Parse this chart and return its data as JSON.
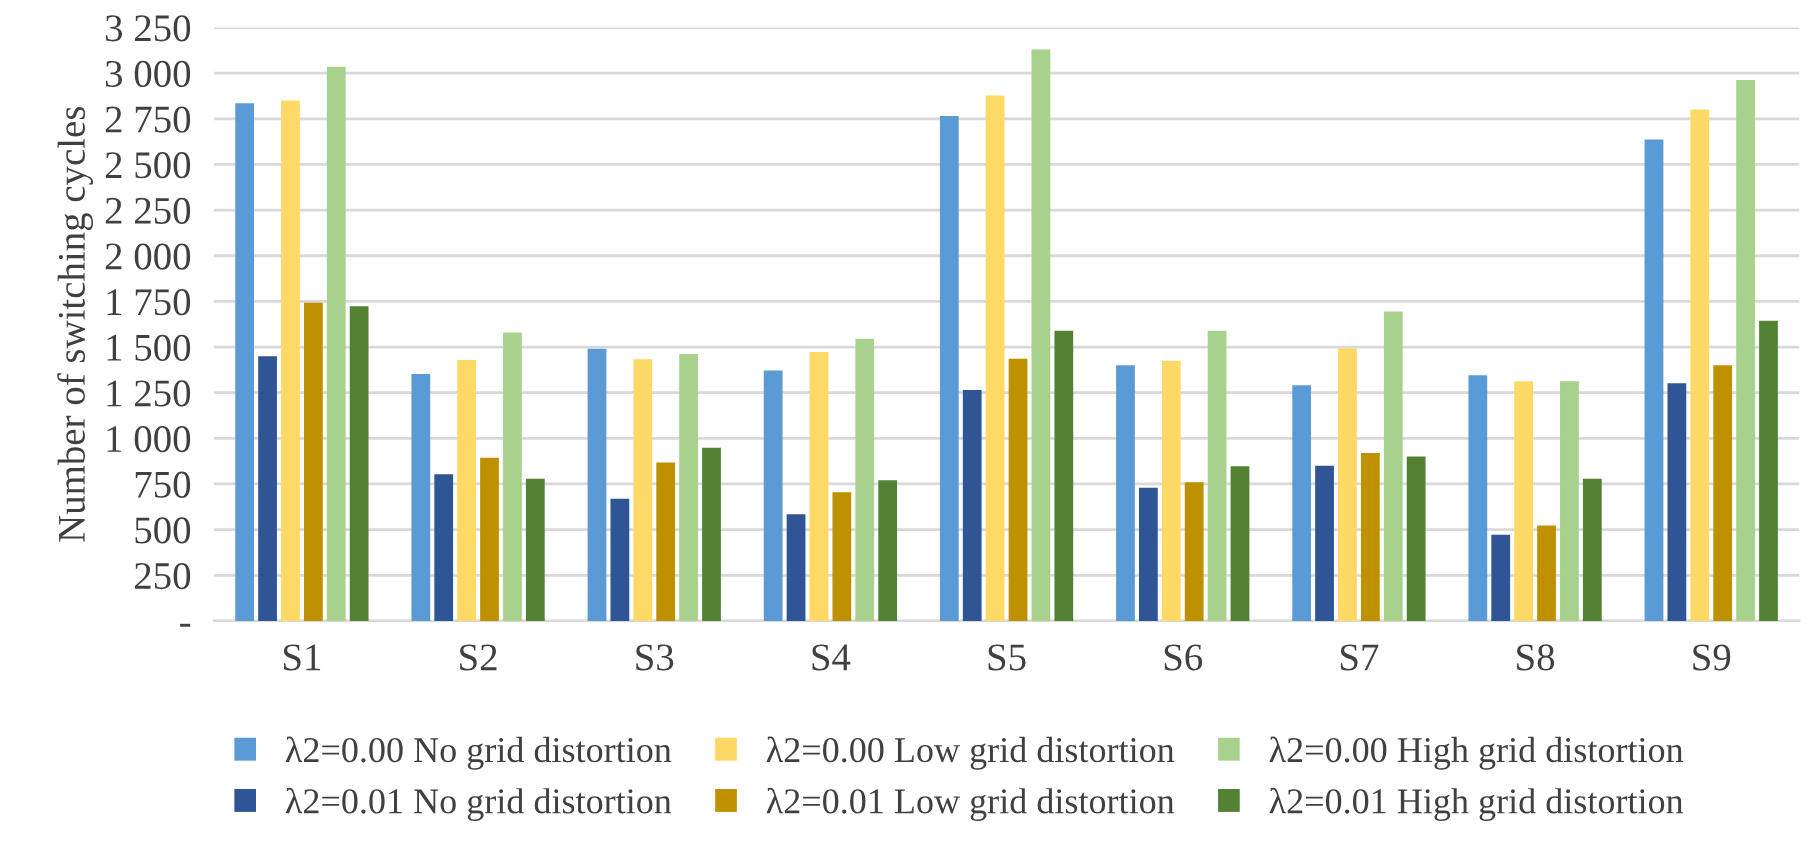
{
  "chart_data": {
    "type": "bar",
    "ylabel": "Number of switching cycles",
    "categories": [
      "S1",
      "S2",
      "S3",
      "S4",
      "S5",
      "S6",
      "S7",
      "S8",
      "S9"
    ],
    "series": [
      {
        "name": "λ2=0.00 No grid distortion",
        "color": "#5b9bd5",
        "values": [
          2835,
          1352,
          1491,
          1371,
          2766,
          1400,
          1291,
          1345,
          2637
        ]
      },
      {
        "name": "λ2=0.01 No grid distortion",
        "color": "#2f5597",
        "values": [
          1450,
          803,
          669,
          584,
          1265,
          730,
          850,
          472,
          1302
        ]
      },
      {
        "name": "λ2=0.00 Low grid distortion",
        "color": "#ffd966",
        "values": [
          2850,
          1429,
          1433,
          1473,
          2878,
          1425,
          1494,
          1313,
          2801
        ]
      },
      {
        "name": "λ2=0.01 Low grid distortion",
        "color": "#bf9000",
        "values": [
          1742,
          894,
          868,
          705,
          1436,
          759,
          919,
          522,
          1400
        ]
      },
      {
        "name": "λ2=0.00 High grid distortion",
        "color": "#a9d18e",
        "values": [
          3035,
          1579,
          1462,
          1546,
          3130,
          1589,
          1695,
          1313,
          2962
        ]
      },
      {
        "name": "λ2=0.01 High grid distortion",
        "color": "#548235",
        "values": [
          1724,
          778,
          948,
          770,
          1589,
          847,
          901,
          778,
          1644
        ]
      }
    ],
    "ylim": [
      0,
      3250
    ],
    "yticks": [
      {
        "value": 0,
        "label": "-"
      },
      250,
      500,
      750,
      {
        "value": 1000,
        "label": "1 000"
      },
      {
        "value": 1250,
        "label": "1 250"
      },
      {
        "value": 1500,
        "label": "1 500"
      },
      {
        "value": 1750,
        "label": "1 750"
      },
      {
        "value": 2000,
        "label": "2 000"
      },
      {
        "value": 2250,
        "label": "2 250"
      },
      {
        "value": 2500,
        "label": "2 500"
      },
      {
        "value": 2750,
        "label": "2 750"
      },
      {
        "value": 3000,
        "label": "3 000"
      },
      {
        "value": 3250,
        "label": "3 250"
      }
    ],
    "grid": "y",
    "legend": "bottom"
  }
}
